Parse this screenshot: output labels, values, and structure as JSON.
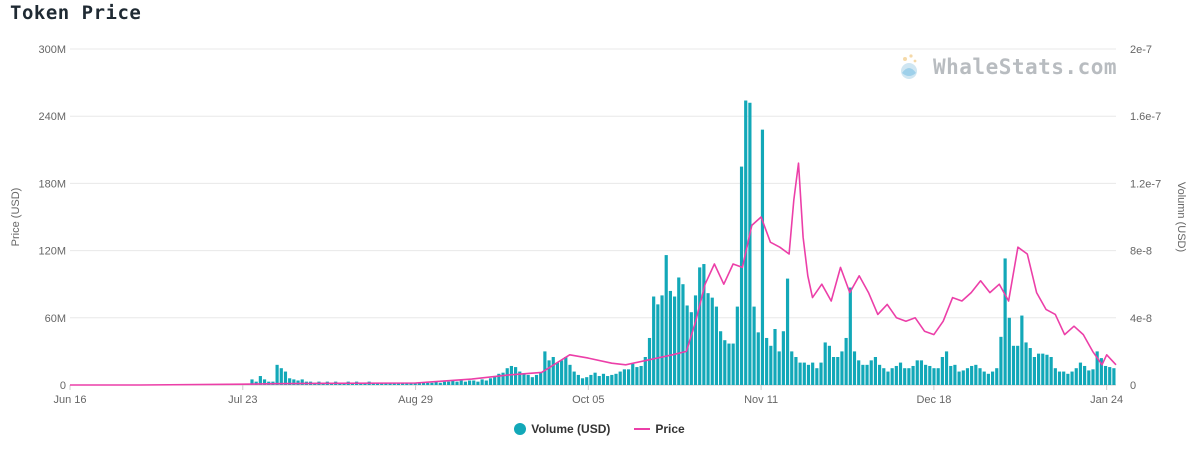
{
  "title": "Token Price",
  "watermark": "WhaleStats.com",
  "colors": {
    "volume": "#12a8b8",
    "price": "#ec3fa8",
    "grid": "#e8e8e8"
  },
  "legend": [
    {
      "label": "Volume (USD)",
      "symbol": "dot"
    },
    {
      "label": "Price",
      "symbol": "line"
    }
  ],
  "chart_data": {
    "type": "bar",
    "title": "Token Price",
    "ylabel_left": "Price (USD)",
    "ylabel_right": "Volumn (USD)",
    "left_ticks": [
      "0",
      "60M",
      "120M",
      "180M",
      "240M",
      "300M"
    ],
    "right_ticks": [
      "0",
      "4e-8",
      "8e-8",
      "1.2e-7",
      "1.6e-7",
      "2e-7"
    ],
    "x_ticks": [
      "Jun 16",
      "Jul 23",
      "Aug 29",
      "Oct 05",
      "Nov 11",
      "Dec 18",
      "Jan 24"
    ],
    "x_start": "Jun 16",
    "x_end": "Jan 26",
    "left_ylim": [
      0,
      300000000
    ],
    "right_ylim": [
      0,
      2e-07
    ],
    "grid": true,
    "legend_position": "bottom",
    "series": [
      {
        "name": "Volume (USD)",
        "axis": "left",
        "type": "bar",
        "values_M": [
          0.3,
          0.2,
          0.2,
          0.3,
          0.2,
          0.3,
          0.2,
          0.2,
          0.3,
          0.2,
          0.2,
          0.3,
          0.2,
          0.3,
          0.2,
          0.2,
          0.3,
          0.2,
          0.2,
          0.3,
          0.2,
          0.3,
          0.2,
          0.2,
          0.3,
          0.2,
          0.2,
          0.3,
          0.2,
          0.3,
          0.2,
          0.2,
          0.3,
          0.2,
          0.2,
          0.3,
          0.5,
          0.5,
          0.4,
          0.5,
          0.5,
          0.4,
          0.6,
          5,
          3,
          8,
          5,
          3,
          3,
          18,
          15,
          12,
          6,
          5,
          4,
          5,
          3,
          3,
          2,
          3,
          2,
          3,
          2,
          3,
          2,
          2,
          3,
          2,
          3,
          2,
          2,
          3,
          2,
          2,
          2,
          2,
          2,
          2,
          2,
          2,
          2,
          2,
          2,
          2,
          2,
          2,
          2,
          3,
          2,
          3,
          3,
          4,
          3,
          4,
          3,
          4,
          4,
          3,
          5,
          4,
          6,
          8,
          10,
          11,
          15,
          17,
          16,
          12,
          10,
          9,
          7,
          9,
          11,
          30,
          22,
          25,
          20,
          22,
          25,
          18,
          12,
          9,
          6,
          7,
          9,
          11,
          8,
          10,
          8,
          9,
          10,
          12,
          14,
          14,
          19,
          16,
          17,
          25,
          42,
          79,
          72,
          80,
          116,
          84,
          79,
          96,
          90,
          71,
          65,
          80,
          105,
          108,
          82,
          78,
          70,
          48,
          40,
          37,
          37,
          70,
          195,
          254,
          252,
          70,
          47,
          228,
          42,
          35,
          50,
          30,
          48,
          95,
          30,
          25,
          20,
          20,
          18,
          20,
          15,
          20,
          38,
          35,
          25,
          25,
          30,
          42,
          87,
          30,
          22,
          18,
          18,
          22,
          25,
          18,
          15,
          12,
          15,
          17,
          20,
          15,
          15,
          17,
          22,
          22,
          18,
          17,
          15,
          15,
          25,
          30,
          17,
          18,
          12,
          13,
          15,
          17,
          18,
          15,
          12,
          10,
          12,
          15,
          43,
          113,
          60,
          35,
          35,
          62,
          38,
          33,
          25,
          28,
          28,
          27,
          25,
          15,
          12,
          12,
          10,
          12,
          15,
          20,
          17,
          13,
          14,
          30,
          24,
          17,
          16,
          15
        ]
      },
      {
        "name": "Price",
        "axis": "right",
        "type": "line",
        "points": [
          [
            "Jun 16",
            0.0
          ],
          [
            "Jul 01",
            0.0
          ],
          [
            "Jul 23",
            0.005
          ],
          [
            "Jul 30",
            0.008
          ],
          [
            "Aug 10",
            0.01
          ],
          [
            "Aug 29",
            0.012
          ],
          [
            "Sep 10",
            0.035
          ],
          [
            "Sep 18",
            0.06
          ],
          [
            "Sep 25",
            0.075
          ],
          [
            "Oct 01",
            0.18
          ],
          [
            "Oct 05",
            0.16
          ],
          [
            "Oct 10",
            0.13
          ],
          [
            "Oct 13",
            0.12
          ],
          [
            "Oct 18",
            0.15
          ],
          [
            "Oct 23",
            0.18
          ],
          [
            "Oct 26",
            0.2
          ],
          [
            "Oct 28",
            0.38
          ],
          [
            "Oct 30",
            0.6
          ],
          [
            "Nov 01",
            0.72
          ],
          [
            "Nov 03",
            0.6
          ],
          [
            "Nov 05",
            0.72
          ],
          [
            "Nov 07",
            0.7
          ],
          [
            "Nov 09",
            0.95
          ],
          [
            "Nov 11",
            1.0
          ],
          [
            "Nov 13",
            0.85
          ],
          [
            "Nov 15",
            0.82
          ],
          [
            "Nov 17",
            0.78
          ],
          [
            "Nov 18",
            1.1
          ],
          [
            "Nov 19",
            1.32
          ],
          [
            "Nov 20",
            0.88
          ],
          [
            "Nov 21",
            0.65
          ],
          [
            "Nov 22",
            0.52
          ],
          [
            "Nov 24",
            0.6
          ],
          [
            "Nov 26",
            0.5
          ],
          [
            "Nov 28",
            0.7
          ],
          [
            "Nov 30",
            0.55
          ],
          [
            "Dec 02",
            0.65
          ],
          [
            "Dec 04",
            0.55
          ],
          [
            "Dec 06",
            0.42
          ],
          [
            "Dec 08",
            0.48
          ],
          [
            "Dec 10",
            0.4
          ],
          [
            "Dec 12",
            0.38
          ],
          [
            "Dec 14",
            0.4
          ],
          [
            "Dec 16",
            0.32
          ],
          [
            "Dec 18",
            0.3
          ],
          [
            "Dec 20",
            0.38
          ],
          [
            "Dec 22",
            0.52
          ],
          [
            "Dec 24",
            0.5
          ],
          [
            "Dec 26",
            0.55
          ],
          [
            "Dec 28",
            0.62
          ],
          [
            "Dec 30",
            0.55
          ],
          [
            "Jan 01",
            0.6
          ],
          [
            "Jan 03",
            0.5
          ],
          [
            "Jan 05",
            0.82
          ],
          [
            "Jan 07",
            0.78
          ],
          [
            "Jan 09",
            0.55
          ],
          [
            "Jan 11",
            0.45
          ],
          [
            "Jan 13",
            0.42
          ],
          [
            "Jan 15",
            0.3
          ],
          [
            "Jan 17",
            0.35
          ],
          [
            "Jan 19",
            0.3
          ],
          [
            "Jan 21",
            0.2
          ],
          [
            "Jan 23",
            0.12
          ],
          [
            "Jan 24",
            0.18
          ],
          [
            "Jan 26",
            0.12
          ]
        ]
      }
    ]
  }
}
